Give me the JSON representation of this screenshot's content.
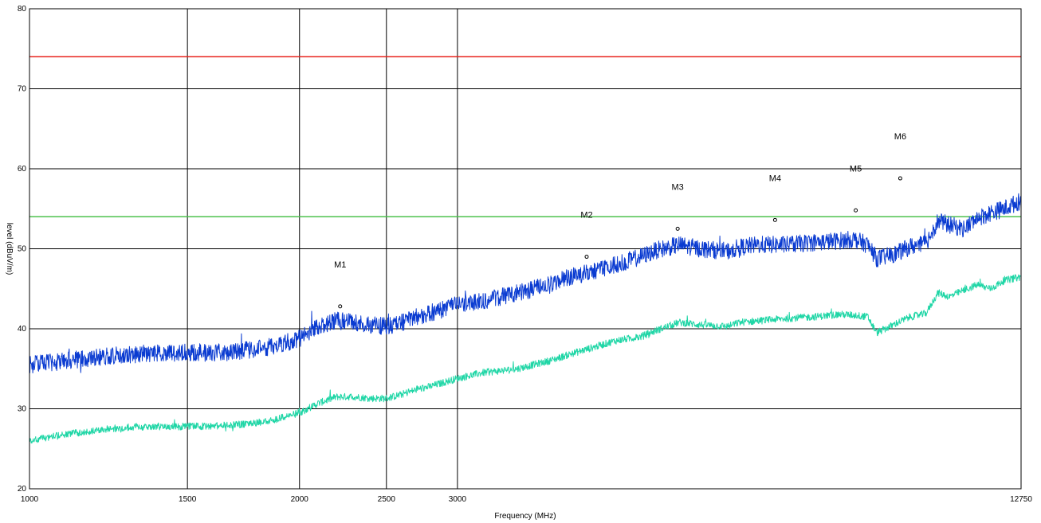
{
  "chart_data": {
    "type": "line",
    "title": "",
    "xlabel": "Frequency (MHz)",
    "ylabel": "level (dBuV/m)",
    "x_scale": "log",
    "xlim": [
      1000,
      12750
    ],
    "ylim": [
      20,
      80
    ],
    "x_ticks": [
      1000,
      1500,
      2000,
      2500,
      3000,
      12750
    ],
    "x_tick_labels": [
      "1000",
      "1500",
      "2000",
      "2500",
      "3000",
      "12750"
    ],
    "y_ticks": [
      20,
      30,
      40,
      50,
      60,
      70,
      80
    ],
    "y_tick_labels": [
      "20",
      "30",
      "40",
      "50",
      "60",
      "70",
      "80"
    ],
    "grid": true,
    "limit_lines": [
      {
        "value": 74,
        "color": "#e8231c"
      },
      {
        "value": 54,
        "color": "#4cc24c"
      }
    ],
    "series": [
      {
        "color": "#0a3bd1",
        "x": [
          1000,
          1100,
          1200,
          1300,
          1400,
          1500,
          1600,
          1700,
          1800,
          1900,
          2000,
          2100,
          2200,
          2300,
          2400,
          2500,
          2600,
          2700,
          2800,
          3000,
          3200,
          3500,
          3800,
          4000,
          4200,
          4500,
          4800,
          5000,
          5300,
          5600,
          6000,
          6200,
          6500,
          7000,
          7500,
          8000,
          8300,
          8600,
          8800,
          9000,
          9300,
          9600,
          9900,
          10000,
          10300,
          10600,
          11000,
          11400,
          11800,
          12200,
          12750
        ],
        "values": [
          35.5,
          36.0,
          36.5,
          36.8,
          37.0,
          37.0,
          37.0,
          37.2,
          37.5,
          38.0,
          38.8,
          40.3,
          41.0,
          40.8,
          40.5,
          40.3,
          40.8,
          41.5,
          42.0,
          43.0,
          43.5,
          44.5,
          45.5,
          46.5,
          47.0,
          48.0,
          49.0,
          49.8,
          50.5,
          50.0,
          49.7,
          50.2,
          50.5,
          50.5,
          50.8,
          51.0,
          51.2,
          50.5,
          48.8,
          49.0,
          49.5,
          50.3,
          50.5,
          50.8,
          53.5,
          53.0,
          52.5,
          53.8,
          54.5,
          55.0,
          56.0
        ]
      },
      {
        "color": "#1fd6a6",
        "x": [
          1000,
          1100,
          1200,
          1300,
          1400,
          1500,
          1600,
          1700,
          1800,
          1900,
          2000,
          2100,
          2200,
          2300,
          2400,
          2500,
          2600,
          2700,
          2800,
          3000,
          3200,
          3500,
          3800,
          4000,
          4200,
          4500,
          4800,
          5000,
          5300,
          5600,
          6000,
          6200,
          6500,
          7000,
          7500,
          8000,
          8300,
          8600,
          8800,
          9000,
          9300,
          9600,
          9900,
          10000,
          10300,
          10600,
          11000,
          11400,
          11800,
          12200,
          12750
        ],
        "values": [
          26.0,
          26.8,
          27.4,
          27.7,
          27.8,
          27.8,
          27.8,
          28.0,
          28.3,
          28.8,
          29.5,
          30.7,
          31.5,
          31.5,
          31.3,
          31.3,
          31.8,
          32.4,
          32.8,
          33.8,
          34.5,
          35.0,
          36.0,
          36.8,
          37.5,
          38.5,
          39.0,
          39.8,
          40.8,
          40.5,
          40.3,
          40.8,
          41.0,
          41.3,
          41.5,
          41.8,
          41.7,
          41.5,
          39.5,
          40.0,
          40.8,
          41.5,
          41.8,
          42.0,
          44.5,
          44.0,
          44.8,
          45.5,
          45.0,
          46.0,
          46.5
        ]
      }
    ],
    "markers": [
      {
        "label": "M1",
        "x": 2220,
        "y": 42.8
      },
      {
        "label": "M2",
        "x": 4180,
        "y": 49.0
      },
      {
        "label": "M3",
        "x": 5280,
        "y": 52.5
      },
      {
        "label": "M4",
        "x": 6780,
        "y": 53.6
      },
      {
        "label": "M5",
        "x": 8340,
        "y": 54.8
      },
      {
        "label": "M6",
        "x": 9350,
        "y": 58.8
      }
    ]
  }
}
